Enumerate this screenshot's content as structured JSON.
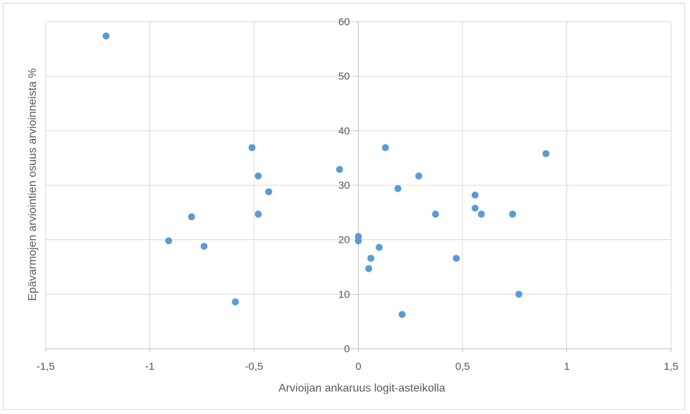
{
  "chart_data": {
    "type": "scatter",
    "title": "",
    "xlabel": "Arvioijan ankaruus logit-asteikolla",
    "ylabel": "Epävarmojen arviointien osuus arvioinneista %",
    "xlim": [
      -1.5,
      1.5
    ],
    "ylim": [
      0,
      60
    ],
    "xticks": [
      -1.5,
      -1,
      -0.5,
      0,
      0.5,
      1,
      1.5
    ],
    "xtick_labels": [
      "-1,5",
      "-1",
      "-0,5",
      "0",
      "0,5",
      "1",
      "1,5"
    ],
    "yticks": [
      0,
      10,
      20,
      30,
      40,
      50,
      60
    ],
    "ytick_labels": [
      "0",
      "10",
      "20",
      "30",
      "40",
      "50",
      "60"
    ],
    "grid": true,
    "legend": "none",
    "marker_color": "#5b9bd5",
    "grid_color": "#d9d9d9",
    "points": [
      {
        "x": -1.21,
        "y": 57.4
      },
      {
        "x": -0.91,
        "y": 19.8
      },
      {
        "x": -0.8,
        "y": 24.2
      },
      {
        "x": -0.74,
        "y": 18.8
      },
      {
        "x": -0.59,
        "y": 8.6
      },
      {
        "x": -0.51,
        "y": 36.9
      },
      {
        "x": -0.48,
        "y": 31.7
      },
      {
        "x": -0.48,
        "y": 24.7
      },
      {
        "x": -0.43,
        "y": 28.8
      },
      {
        "x": -0.09,
        "y": 32.9
      },
      {
        "x": 0.0,
        "y": 20.6
      },
      {
        "x": 0.0,
        "y": 19.8
      },
      {
        "x": 0.05,
        "y": 14.7
      },
      {
        "x": 0.06,
        "y": 16.6
      },
      {
        "x": 0.1,
        "y": 18.6
      },
      {
        "x": 0.13,
        "y": 36.9
      },
      {
        "x": 0.19,
        "y": 29.4
      },
      {
        "x": 0.21,
        "y": 6.3
      },
      {
        "x": 0.29,
        "y": 31.7
      },
      {
        "x": 0.37,
        "y": 24.7
      },
      {
        "x": 0.47,
        "y": 16.6
      },
      {
        "x": 0.56,
        "y": 28.2
      },
      {
        "x": 0.56,
        "y": 25.8
      },
      {
        "x": 0.59,
        "y": 24.7
      },
      {
        "x": 0.74,
        "y": 24.7
      },
      {
        "x": 0.77,
        "y": 10.0
      },
      {
        "x": 0.9,
        "y": 35.8
      }
    ]
  }
}
